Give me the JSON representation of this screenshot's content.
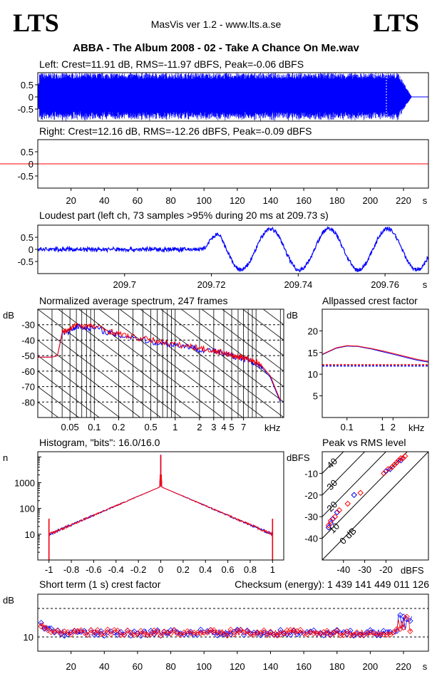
{
  "header": {
    "logo_left": "LTS",
    "logo_right": "LTS",
    "app_title": "MasVis ver 1.2 - www.lts.a.se",
    "track_title": "ABBA - The Album 2008 - 02 - Take A Chance On Me.wav"
  },
  "colors": {
    "left": "#0000ff",
    "right": "#ff0000"
  },
  "chart_data": [
    {
      "type": "area",
      "id": "left-waveform",
      "title": "Left: Crest=11.91 dB, RMS=-11.97 dBFS, Peak=-0.06 dBFS",
      "ylim": [
        -1,
        1
      ],
      "yticks": [
        "0.5",
        "0",
        "-0.5"
      ],
      "xlim": [
        0,
        235
      ],
      "duration_s": 225,
      "series": [
        {
          "name": "Left",
          "color": "#0000ff",
          "envelope": 0.99
        }
      ]
    },
    {
      "type": "area",
      "id": "right-waveform",
      "title": "Right: Crest=12.16 dB, RMS=-12.26 dBFS, Peak=-0.09 dBFS",
      "ylim": [
        -1,
        1
      ],
      "yticks": [
        "0.5",
        "0",
        "-0.5"
      ],
      "xlim": [
        0,
        235
      ],
      "xticks": [
        "20",
        "40",
        "60",
        "80",
        "100",
        "120",
        "140",
        "160",
        "180",
        "200",
        "220"
      ],
      "xunit": "s",
      "series": [
        {
          "name": "Right",
          "color": "#ff0000",
          "envelope": 0.99
        }
      ]
    },
    {
      "type": "line",
      "id": "loudest-part",
      "title": "Loudest part (left  ch, 73 samples >95% during 20 ms at 209.73 s)",
      "ylim": [
        -1,
        1
      ],
      "yticks": [
        "0.5",
        "0",
        "-0.5"
      ],
      "xlim": [
        209.68,
        209.77
      ],
      "xticks": [
        "209.7",
        "209.72",
        "209.74",
        "209.76"
      ],
      "xunit": "s"
    },
    {
      "type": "line",
      "id": "avg-spectrum",
      "title": "Normalized average spectrum, 247 frames",
      "ylabel": "dB",
      "yticks": [
        "-30",
        "-40",
        "-50",
        "-60",
        "-70",
        "-80"
      ],
      "ylim": [
        -90,
        -20
      ],
      "xscale": "log",
      "xlim_khz": [
        0.02,
        22
      ],
      "xticks": [
        "0.05",
        "0.1",
        "0.2",
        "0.5",
        "1",
        "2",
        "3",
        "4",
        "5",
        "7"
      ],
      "xunit": "kHz",
      "series": [
        {
          "color": "#0000ff",
          "x_khz": [
            0.02,
            0.03,
            0.035,
            0.04,
            0.05,
            0.06,
            0.08,
            0.1,
            0.15,
            0.2,
            0.3,
            0.5,
            0.7,
            1,
            1.5,
            2,
            3,
            4,
            5,
            6,
            7,
            8,
            10,
            12,
            15,
            20
          ],
          "y": [
            -51,
            -51,
            -50,
            -36,
            -34,
            -31,
            -32,
            -32,
            -35,
            -37,
            -38,
            -41,
            -42,
            -43,
            -44,
            -46,
            -47,
            -49,
            -50,
            -51,
            -52,
            -53,
            -55,
            -58,
            -64,
            -80
          ]
        },
        {
          "color": "#ff0000",
          "x_khz": [
            0.02,
            0.03,
            0.035,
            0.04,
            0.05,
            0.06,
            0.08,
            0.1,
            0.15,
            0.2,
            0.3,
            0.5,
            0.7,
            1,
            1.5,
            2,
            3,
            4,
            5,
            6,
            7,
            8,
            10,
            12,
            15,
            20
          ],
          "y": [
            -51,
            -51,
            -50,
            -35,
            -33,
            -30,
            -31,
            -31,
            -34,
            -36,
            -38,
            -40,
            -41,
            -43,
            -44,
            -45,
            -47,
            -48,
            -50,
            -51,
            -51,
            -52,
            -54,
            -57,
            -63,
            -79
          ]
        }
      ]
    },
    {
      "type": "line",
      "id": "allpassed-crest",
      "title": "Allpassed crest factor",
      "ylabel": "dB",
      "yticks": [
        "20",
        "15",
        "10",
        "5"
      ],
      "ylim": [
        0,
        25
      ],
      "xscale": "log",
      "xlim_khz": [
        0.02,
        20
      ],
      "xticks": [
        "0.1",
        "1",
        "2"
      ],
      "xunit": "kHz",
      "series": [
        {
          "color": "#0000ff",
          "x_khz": [
            0.02,
            0.05,
            0.1,
            0.2,
            0.5,
            1,
            2,
            5,
            10,
            20
          ],
          "y": [
            14.5,
            16.0,
            16.5,
            16.4,
            15.8,
            15.2,
            14.6,
            13.8,
            13.2,
            12.8
          ]
        },
        {
          "color": "#ff0000",
          "x_khz": [
            0.02,
            0.05,
            0.1,
            0.2,
            0.5,
            1,
            2,
            5,
            10,
            20
          ],
          "y": [
            14.6,
            16.1,
            16.6,
            16.5,
            15.9,
            15.4,
            14.8,
            14.0,
            13.4,
            13.0
          ]
        }
      ],
      "reference_lines": [
        {
          "color": "#0000ff",
          "y": 11.9
        },
        {
          "color": "#ff0000",
          "y": 12.2
        }
      ]
    },
    {
      "type": "line",
      "id": "histogram",
      "title": "Histogram, \"bits\": 16.0/16.0",
      "ylabel": "n",
      "yscale": "log",
      "yticks": [
        "1000",
        "100",
        "10"
      ],
      "xlim": [
        -1.1,
        1.1
      ],
      "xticks": [
        "-1",
        "-0.8",
        "-0.6",
        "-0.4",
        "-0.2",
        "0",
        "0.2",
        "0.4",
        "0.6",
        "0.8",
        "1"
      ]
    },
    {
      "type": "scatter",
      "id": "peak-vs-rms",
      "title": "Peak vs RMS level",
      "ylabel": "dBFS",
      "yticks": [
        "-10",
        "-20",
        "-30",
        "-40"
      ],
      "xticks": [
        "-40",
        "-30",
        "-20"
      ],
      "xlabel": "dBFS",
      "diagonal_labels": [
        "40",
        "30",
        "20",
        "10",
        "0 dB"
      ],
      "series": [
        {
          "color": "#0000ff",
          "points": [
            [
              -47,
              -35
            ],
            [
              -46,
              -33
            ],
            [
              -45,
              -31
            ],
            [
              -43,
              -28
            ],
            [
              -35,
              -20
            ],
            [
              -20,
              -9
            ],
            [
              -18,
              -8
            ],
            [
              -17,
              -7
            ],
            [
              -16,
              -6
            ],
            [
              -15,
              -5
            ],
            [
              -14,
              -4
            ],
            [
              -13,
              -4
            ],
            [
              -12,
              -3
            ]
          ]
        },
        {
          "color": "#ff0000",
          "points": [
            [
              -47,
              -34
            ],
            [
              -46,
              -32
            ],
            [
              -44,
              -30
            ],
            [
              -42,
              -27
            ],
            [
              -38,
              -24
            ],
            [
              -32,
              -19
            ],
            [
              -21,
              -10
            ],
            [
              -19,
              -8
            ],
            [
              -17,
              -7
            ],
            [
              -16,
              -6
            ],
            [
              -15,
              -5
            ],
            [
              -14,
              -4
            ],
            [
              -13,
              -3
            ],
            [
              -12,
              -3
            ],
            [
              -11,
              -2
            ]
          ]
        }
      ]
    },
    {
      "type": "scatter",
      "id": "short-term-crest",
      "title": "Short term (1 s) crest factor",
      "checksum": "Checksum (energy):  1 439 141 449 011 126",
      "ylabel": "dB",
      "yticks": [
        "10"
      ],
      "xlim": [
        0,
        235
      ],
      "xticks": [
        "20",
        "40",
        "60",
        "80",
        "100",
        "120",
        "140",
        "160",
        "180",
        "200",
        "220"
      ],
      "xunit": "s"
    }
  ]
}
